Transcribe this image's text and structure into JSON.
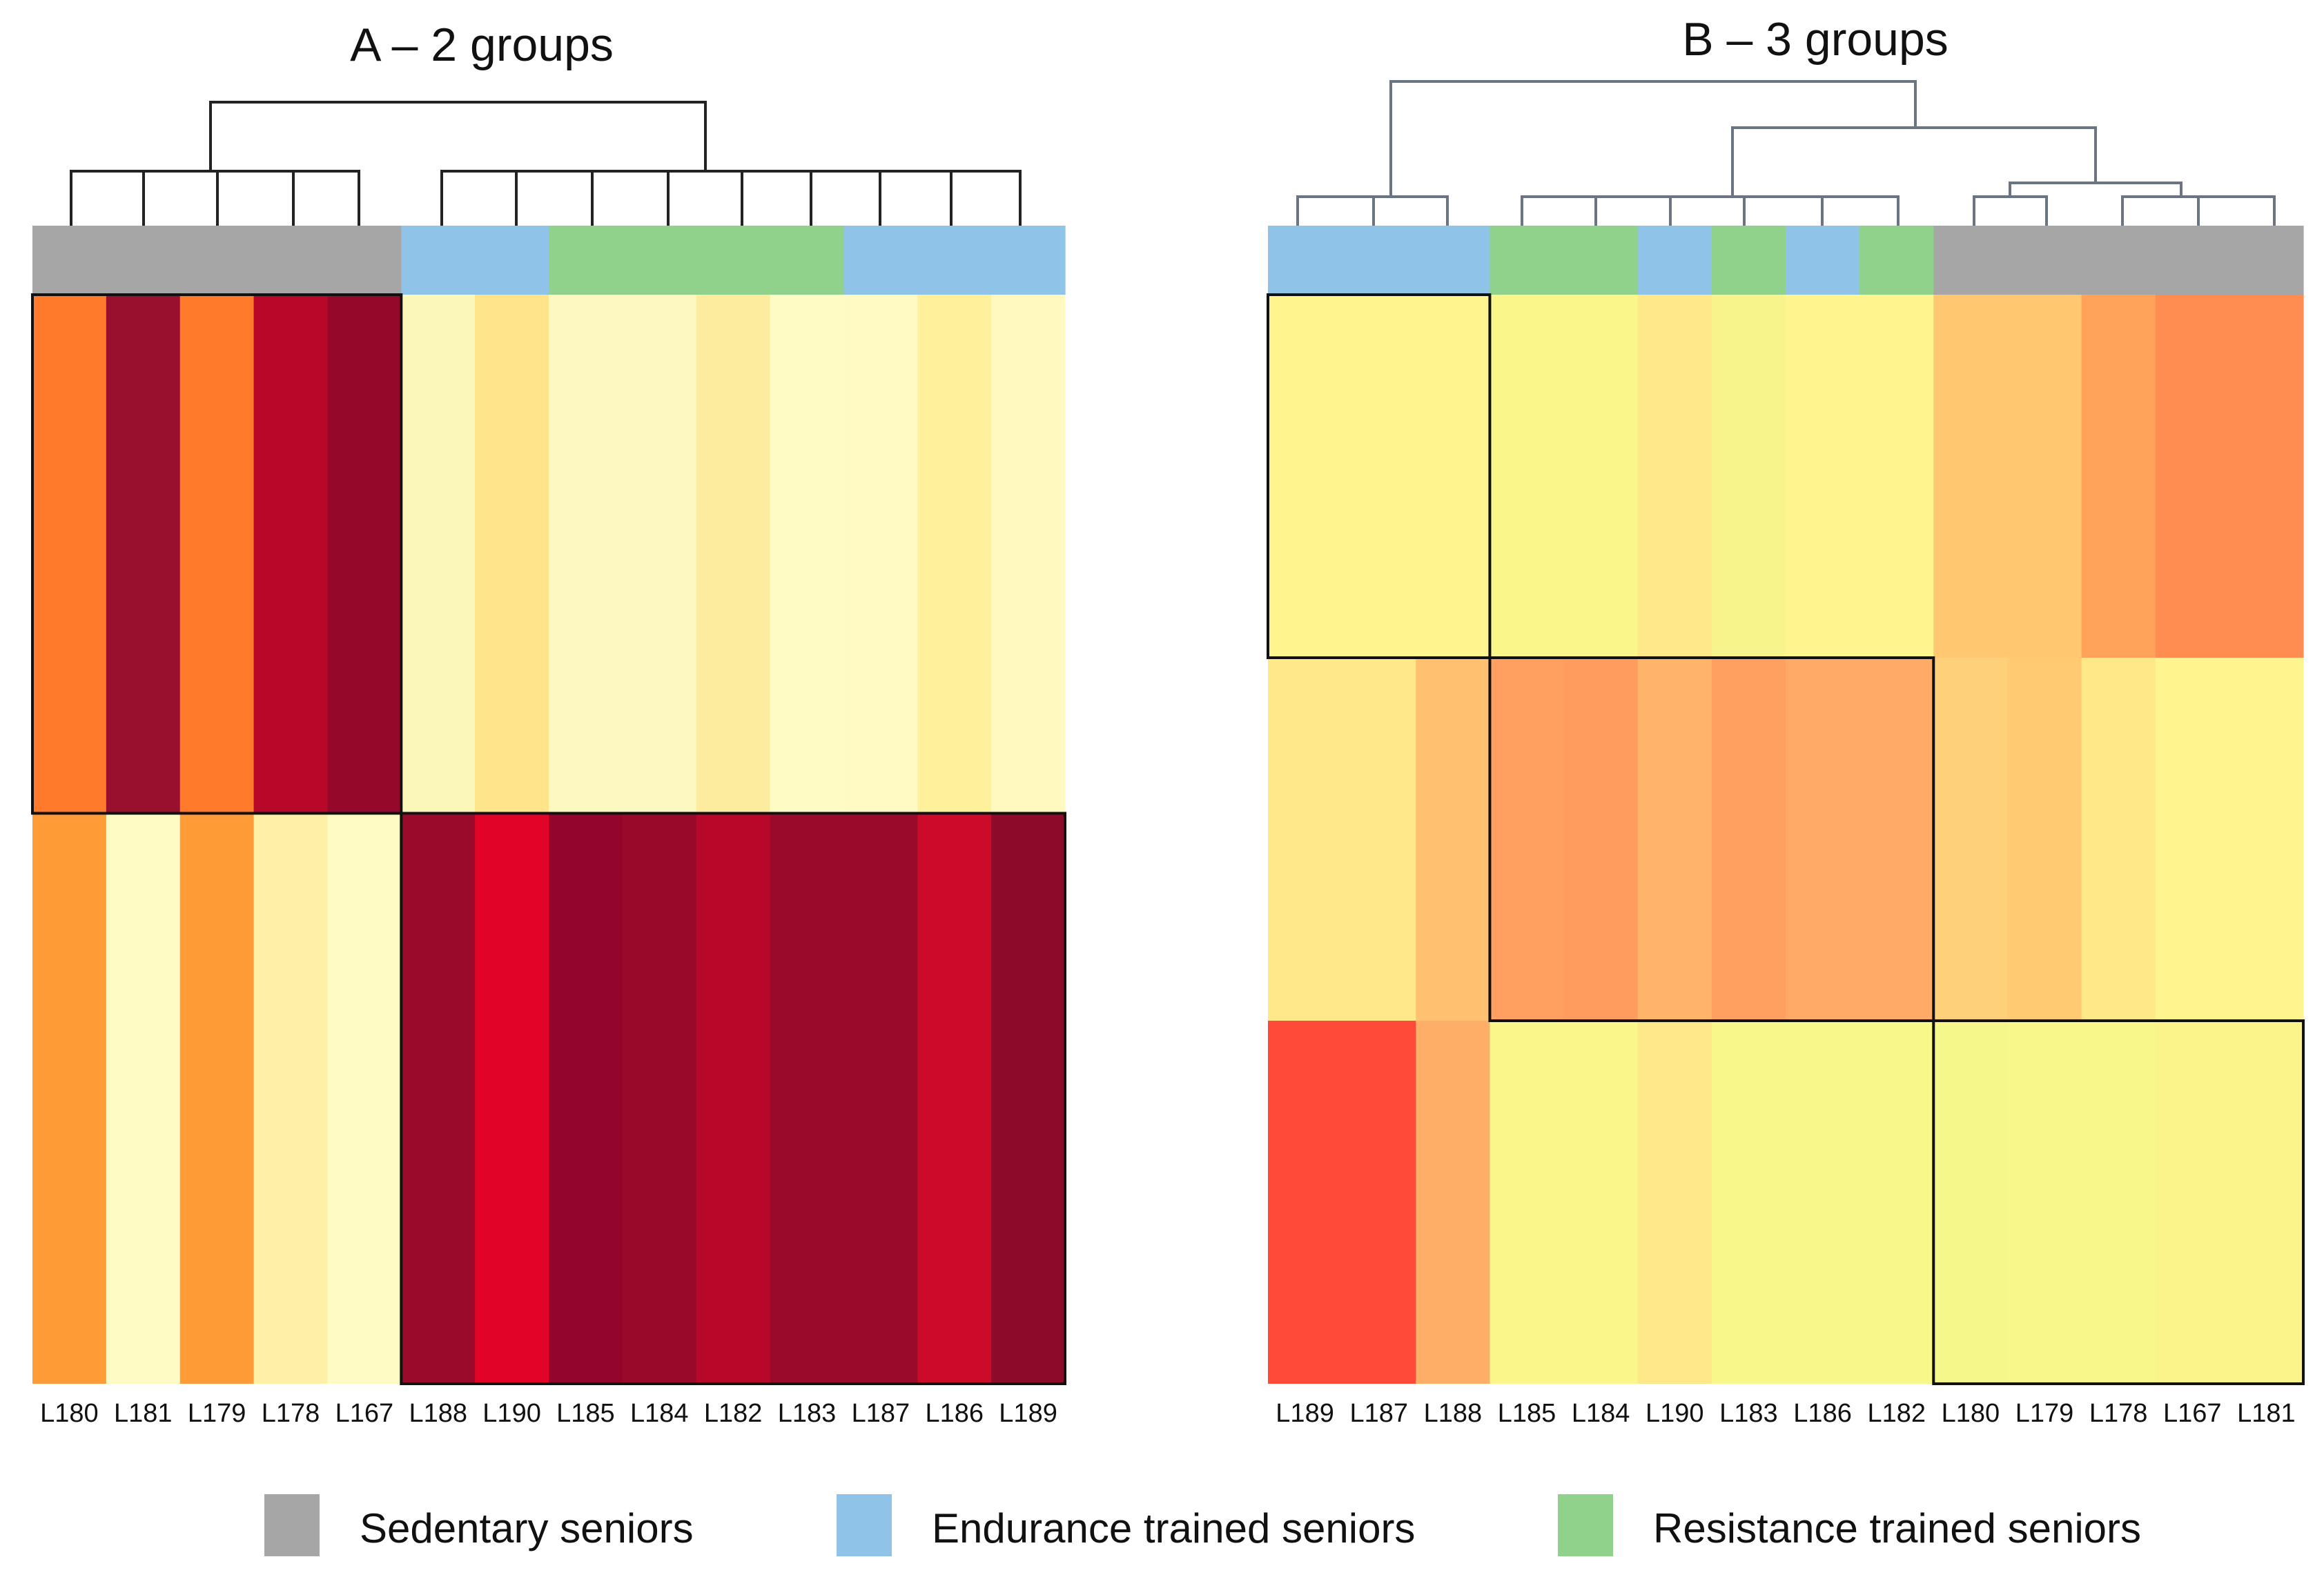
{
  "colors": {
    "sedentary": "#a6a6a6",
    "endurance": "#8fc3e8",
    "resistance": "#90d18b",
    "dendro": "#222222",
    "dendro_b": "#6b7483",
    "block_border": "#111111"
  },
  "legend": [
    {
      "label": "Sedentary seniors",
      "color": "#a6a6a6"
    },
    {
      "label": "Endurance trained seniors",
      "color": "#8fc3e8"
    },
    {
      "label": "Resistance trained seniors",
      "color": "#90d18b"
    }
  ],
  "chart_data": [
    {
      "type": "heatmap",
      "title": "A – 2 groups",
      "columns": [
        "L180",
        "L181",
        "L179",
        "L178",
        "L167",
        "L188",
        "L190",
        "L185",
        "L184",
        "L182",
        "L183",
        "L187",
        "L186",
        "L189"
      ],
      "group_bar": [
        "sedentary",
        "sedentary",
        "sedentary",
        "sedentary",
        "sedentary",
        "endurance",
        "endurance",
        "resistance",
        "resistance",
        "resistance",
        "resistance",
        "endurance",
        "endurance",
        "endurance"
      ],
      "row_weights": [
        3,
        3.3
      ],
      "clusters": [
        [
          0,
          4
        ],
        [
          5,
          13
        ]
      ],
      "rows": [
        [
          "#ff7a2a",
          "#99102e",
          "#ff7a2a",
          "#b8082a",
          "#95082a",
          "#fbf7b8",
          "#ffe48a",
          "#fdf7c1",
          "#fdf7c1",
          "#fdeb9e",
          "#fffbc4",
          "#fff9c4",
          "#fff09c",
          "#fff9c0"
        ],
        [
          "#ff9c38",
          "#fffbc4",
          "#ff9c38",
          "#fff0a8",
          "#fffbc4",
          "#9a0a2a",
          "#e20329",
          "#93052a",
          "#98092a",
          "#b8082a",
          "#9a0a2a",
          "#9a0a2a",
          "#cc0a2a",
          "#8e0a2a"
        ]
      ],
      "dendrogram": {
        "leaves": [
          [
            0,
            1
          ],
          [
            1,
            2
          ],
          [
            2,
            3
          ],
          [
            3,
            4
          ],
          [
            4,
            5
          ],
          [
            5,
            6
          ],
          [
            6,
            7
          ],
          [
            7,
            8
          ],
          [
            8,
            9
          ],
          [
            9,
            10
          ],
          [
            10,
            11
          ],
          [
            11,
            12
          ],
          [
            12,
            13
          ]
        ],
        "joins": [
          [
            2,
            8
          ]
        ]
      }
    },
    {
      "type": "heatmap",
      "title": "B – 3 groups",
      "columns": [
        "L189",
        "L187",
        "L188",
        "L185",
        "L184",
        "L190",
        "L183",
        "L186",
        "L182",
        "L180",
        "L179",
        "L178",
        "L167",
        "L181"
      ],
      "group_bar": [
        "endurance",
        "endurance",
        "endurance",
        "resistance",
        "resistance",
        "endurance",
        "resistance",
        "endurance",
        "resistance",
        "sedentary",
        "sedentary",
        "sedentary",
        "sedentary",
        "sedentary"
      ],
      "row_weights": [
        1,
        1,
        1
      ],
      "clusters": [
        [
          0,
          2
        ],
        [
          3,
          8
        ],
        [
          9,
          13
        ]
      ],
      "rows": [
        [
          "#fef58e",
          "#fef58e",
          "#fef58e",
          "#fbf68a",
          "#fbf68a",
          "#ffe88a",
          "#f6f48a",
          "#fef58e",
          "#fef58e",
          "#ffc870",
          "#ffc870",
          "#ffa25a",
          "#ff8c50",
          "#ff8c50"
        ],
        [
          "#ffe88a",
          "#ffe88a",
          "#ffc070",
          "#ffa060",
          "#ff9c5e",
          "#ffb46a",
          "#ffa060",
          "#ffaa66",
          "#ffaa66",
          "#ffd07a",
          "#ffca72",
          "#ffe888",
          "#fef58e",
          "#fef58e"
        ],
        [
          "#ff4a3a",
          "#ff4a3a",
          "#ffae68",
          "#fbf68a",
          "#fbf68a",
          "#ffe88a",
          "#f8f78a",
          "#f8f78a",
          "#f8f78a",
          "#f6f78a",
          "#f8f78a",
          "#f8f78a",
          "#fbf48a",
          "#fbf48a"
        ]
      ]
    }
  ]
}
